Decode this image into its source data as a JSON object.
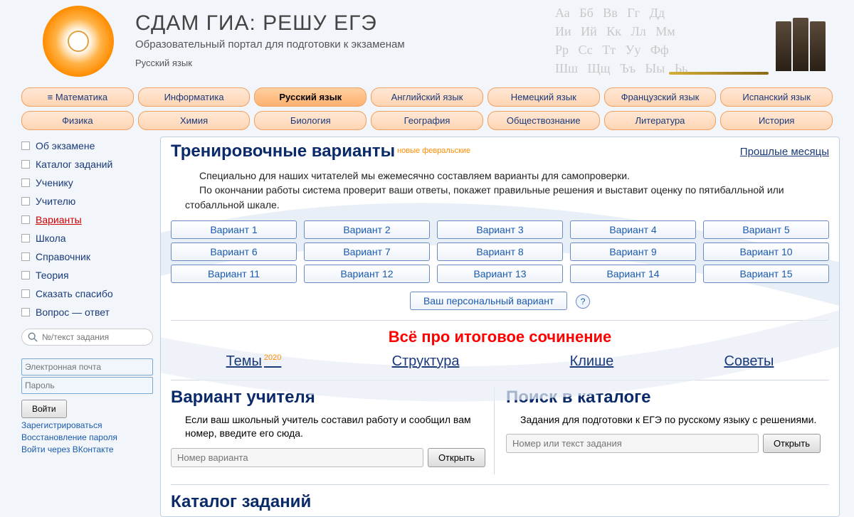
{
  "header": {
    "title": "СДАМ ГИА: РЕШУ ЕГЭ",
    "subtitle": "Образовательный портал для подготовки к экзаменам",
    "subject": "Русский язык",
    "alphabet": "Аа   Бб   Вв   Гг   Дд\nИи   Ий   Кк   Лл   Мм\nРр   Сс   Тт   Уу   Фф\nШш   Щщ   Ъъ   Ыы   Ьь"
  },
  "nav": {
    "row1": [
      "≡ Математика",
      "Информатика",
      "Русский язык",
      "Английский язык",
      "Немецкий язык",
      "Французский язык",
      "Испанский язык"
    ],
    "row2": [
      "Физика",
      "Химия",
      "Биология",
      "География",
      "Обществознание",
      "Литература",
      "История"
    ],
    "active": "Русский язык"
  },
  "sidebar": {
    "items": [
      "Об экзамене",
      "Каталог заданий",
      "Ученику",
      "Учителю",
      "Варианты",
      "Школа",
      "Справочник",
      "Теория",
      "Сказать спасибо",
      "Вопрос — ответ"
    ],
    "active": "Варианты",
    "search_placeholder": "№/текст задания"
  },
  "login": {
    "email_placeholder": "Электронная почта",
    "pass_placeholder": "Пароль",
    "button": "Войти",
    "links": [
      "Зарегистрироваться",
      "Восстановление пароля",
      "Войти через ВКонтакте"
    ]
  },
  "training": {
    "heading": "Тренировочные варианты",
    "sup": "новые февральские",
    "past": "Прошлые месяцы",
    "intro1": "Специально для наших читателей мы ежемесячно составляем варианты для самопроверки.",
    "intro2": "По окончании работы система проверит ваши ответы, покажет правильные решения и выставит оценку по пятибалльной или стобалльной шкале.",
    "variants": [
      "Вариант 1",
      "Вариант 2",
      "Вариант 3",
      "Вариант 4",
      "Вариант 5",
      "Вариант 6",
      "Вариант 7",
      "Вариант 8",
      "Вариант 9",
      "Вариант 10",
      "Вариант 11",
      "Вариант 12",
      "Вариант 13",
      "Вариант 14",
      "Вариант 15"
    ],
    "personal": "Ваш персональный вариант"
  },
  "essay": {
    "heading": "Всё про итоговое сочинение",
    "links": [
      "Темы",
      "Структура",
      "Клише",
      "Советы"
    ],
    "sup": "2020"
  },
  "teacher": {
    "heading": "Вариант учителя",
    "text": "Если ваш школьный учитель составил работу и сообщил вам номер, введите его сюда.",
    "placeholder": "Номер варианта",
    "button": "Открыть"
  },
  "catalog": {
    "heading": "Поиск в каталоге",
    "text": "Задания для подготовки к ЕГЭ по русскому языку с решениями.",
    "placeholder": "Номер или текст задания",
    "button": "Открыть"
  },
  "bottom_heading": "Каталог заданий",
  "colors": {
    "nav_bg": "#ffe8d6",
    "nav_border": "#f0a060",
    "link": "#1a3a7a",
    "accent_red": "#ff0000",
    "accent_orange": "#ff8c00"
  }
}
